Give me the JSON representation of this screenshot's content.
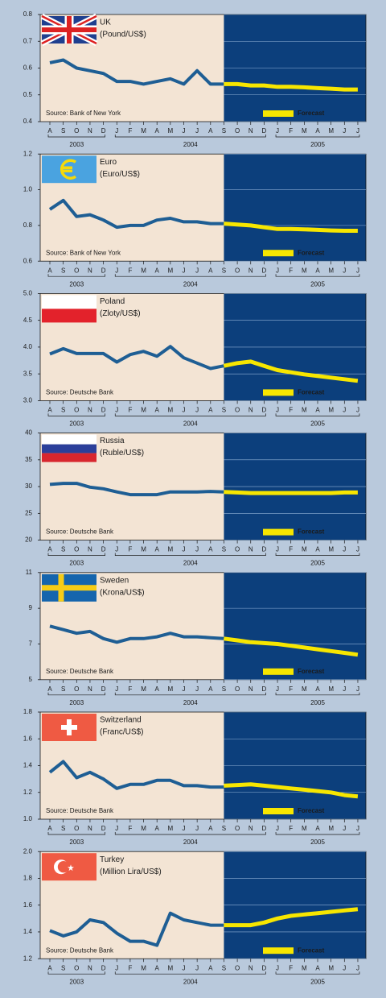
{
  "chart_data": [
    {
      "type": "line",
      "title": "UK",
      "subtitle": "(Pound/US$)",
      "source": "Source: Bank of New York",
      "categories": [
        "A",
        "S",
        "O",
        "N",
        "D",
        "J",
        "F",
        "M",
        "A",
        "M",
        "J",
        "J",
        "A",
        "S",
        "O",
        "N",
        "D",
        "J",
        "F",
        "M",
        "A",
        "M",
        "J",
        "J"
      ],
      "years": [
        "2003",
        "2004",
        "2005"
      ],
      "ylim": [
        0.4,
        0.8
      ],
      "yticks": [
        0.4,
        0.5,
        0.6,
        0.7,
        0.8
      ],
      "grid": true,
      "series": [
        {
          "color": "#1e5e94",
          "values": [
            0.62,
            0.63,
            0.6,
            0.59,
            0.58,
            0.55,
            0.55,
            0.54,
            0.55,
            0.56,
            0.54,
            0.59,
            0.54,
            0.54,
            null,
            null,
            null,
            null,
            null,
            null,
            null,
            null,
            null,
            null
          ]
        },
        {
          "name": "Forecast",
          "color": "#f7e600",
          "values": [
            null,
            null,
            null,
            null,
            null,
            null,
            null,
            null,
            null,
            null,
            null,
            null,
            null,
            0.54,
            0.54,
            0.535,
            0.535,
            0.53,
            0.53,
            0.528,
            0.525,
            0.523,
            0.52,
            0.52
          ]
        }
      ]
    },
    {
      "type": "line",
      "title": "Euro",
      "subtitle": "(Euro/US$)",
      "source": "Source: Bank of New York",
      "categories": [
        "A",
        "S",
        "O",
        "N",
        "D",
        "J",
        "F",
        "M",
        "A",
        "M",
        "J",
        "J",
        "A",
        "S",
        "O",
        "N",
        "D",
        "J",
        "F",
        "M",
        "A",
        "M",
        "J",
        "J"
      ],
      "years": [
        "2003",
        "2004",
        "2005"
      ],
      "ylim": [
        0.6,
        1.2
      ],
      "yticks": [
        0.6,
        0.8,
        {
          "value": 1,
          "label": "1.0"
        },
        1.2
      ],
      "grid": true,
      "series": [
        {
          "color": "#1e5e94",
          "values": [
            0.89,
            0.94,
            0.85,
            0.86,
            0.83,
            0.79,
            0.8,
            0.8,
            0.83,
            0.84,
            0.82,
            0.82,
            0.81,
            0.81,
            null,
            null,
            null,
            null,
            null,
            null,
            null,
            null,
            null,
            null
          ]
        },
        {
          "name": "Forecast",
          "color": "#f7e600",
          "values": [
            null,
            null,
            null,
            null,
            null,
            null,
            null,
            null,
            null,
            null,
            null,
            null,
            null,
            0.81,
            0.805,
            0.8,
            0.79,
            0.78,
            0.78,
            0.778,
            0.775,
            0.772,
            0.77,
            0.77
          ]
        }
      ]
    },
    {
      "type": "line",
      "title": "Poland",
      "subtitle": "(Zloty/US$)",
      "source": "Source: Deutsche Bank",
      "categories": [
        "A",
        "S",
        "O",
        "N",
        "D",
        "J",
        "F",
        "M",
        "A",
        "M",
        "J",
        "J",
        "A",
        "S",
        "O",
        "N",
        "D",
        "J",
        "F",
        "M",
        "A",
        "M",
        "J",
        "J"
      ],
      "years": [
        "2003",
        "2004",
        "2005"
      ],
      "ylim": [
        3,
        5
      ],
      "yticks": [
        {
          "value": 3,
          "label": "3.0"
        },
        3.5,
        {
          "value": 4,
          "label": "4.0"
        },
        4.5,
        {
          "value": 5,
          "label": "5.0"
        }
      ],
      "grid": true,
      "series": [
        {
          "color": "#1e5e94",
          "values": [
            3.87,
            3.97,
            3.88,
            3.88,
            3.88,
            3.72,
            3.86,
            3.92,
            3.83,
            4.01,
            3.8,
            3.7,
            3.6,
            3.65,
            null,
            null,
            null,
            null,
            null,
            null,
            null,
            null,
            null,
            null
          ]
        },
        {
          "name": "Forecast",
          "color": "#f7e600",
          "values": [
            null,
            null,
            null,
            null,
            null,
            null,
            null,
            null,
            null,
            null,
            null,
            null,
            null,
            3.65,
            3.7,
            3.73,
            3.65,
            3.57,
            3.53,
            3.49,
            3.46,
            3.43,
            3.4,
            3.37
          ]
        }
      ]
    },
    {
      "type": "line",
      "title": "Russia",
      "subtitle": "(Ruble/US$)",
      "source": "Source: Deutsche Bank",
      "categories": [
        "A",
        "S",
        "O",
        "N",
        "D",
        "J",
        "F",
        "M",
        "A",
        "M",
        "J",
        "J",
        "A",
        "S",
        "O",
        "N",
        "D",
        "J",
        "F",
        "M",
        "A",
        "M",
        "J",
        "J"
      ],
      "years": [
        "2003",
        "2004",
        "2005"
      ],
      "ylim": [
        20,
        40
      ],
      "yticks": [
        20,
        25,
        30,
        35,
        40
      ],
      "grid": true,
      "series": [
        {
          "color": "#1e5e94",
          "values": [
            30.4,
            30.6,
            30.6,
            29.9,
            29.6,
            29.0,
            28.5,
            28.5,
            28.5,
            29.0,
            29.0,
            29.0,
            29.1,
            29.0,
            null,
            null,
            null,
            null,
            null,
            null,
            null,
            null,
            null,
            null
          ]
        },
        {
          "name": "Forecast",
          "color": "#f7e600",
          "values": [
            null,
            null,
            null,
            null,
            null,
            null,
            null,
            null,
            null,
            null,
            null,
            null,
            null,
            29.0,
            28.9,
            28.8,
            28.8,
            28.8,
            28.8,
            28.8,
            28.8,
            28.8,
            28.9,
            28.9
          ]
        }
      ]
    },
    {
      "type": "line",
      "title": "Sweden",
      "subtitle": "(Krona/US$)",
      "source": "Source: Deutsche Bank",
      "categories": [
        "A",
        "S",
        "O",
        "N",
        "D",
        "J",
        "F",
        "M",
        "A",
        "M",
        "J",
        "J",
        "A",
        "S",
        "O",
        "N",
        "D",
        "J",
        "F",
        "M",
        "A",
        "M",
        "J",
        "J"
      ],
      "years": [
        "2003",
        "2004",
        "2005"
      ],
      "ylim": [
        5,
        11
      ],
      "yticks": [
        5,
        7,
        9,
        11
      ],
      "grid": true,
      "series": [
        {
          "color": "#1e5e94",
          "values": [
            8.0,
            7.8,
            7.6,
            7.7,
            7.3,
            7.1,
            7.3,
            7.3,
            7.4,
            7.6,
            7.4,
            7.4,
            7.35,
            7.3,
            null,
            null,
            null,
            null,
            null,
            null,
            null,
            null,
            null,
            null
          ]
        },
        {
          "name": "Forecast",
          "color": "#f7e600",
          "values": [
            null,
            null,
            null,
            null,
            null,
            null,
            null,
            null,
            null,
            null,
            null,
            null,
            null,
            7.3,
            7.2,
            7.1,
            7.05,
            7.0,
            6.9,
            6.8,
            6.7,
            6.6,
            6.5,
            6.4
          ]
        }
      ]
    },
    {
      "type": "line",
      "title": "Switzerland",
      "subtitle": "(Franc/US$)",
      "source": "Source: Deutsche Bank",
      "categories": [
        "A",
        "S",
        "O",
        "N",
        "D",
        "J",
        "F",
        "M",
        "A",
        "M",
        "J",
        "J",
        "A",
        "S",
        "O",
        "N",
        "D",
        "J",
        "F",
        "M",
        "A",
        "M",
        "J",
        "J"
      ],
      "years": [
        "2003",
        "2004",
        "2005"
      ],
      "ylim": [
        1,
        1.8
      ],
      "yticks": [
        {
          "value": 1,
          "label": "1.0"
        },
        1.2,
        1.4,
        1.6,
        1.8
      ],
      "grid": true,
      "series": [
        {
          "color": "#1e5e94",
          "values": [
            1.35,
            1.43,
            1.31,
            1.35,
            1.3,
            1.23,
            1.26,
            1.26,
            1.29,
            1.29,
            1.25,
            1.25,
            1.24,
            1.24,
            null,
            null,
            null,
            null,
            null,
            null,
            null,
            null,
            null,
            null
          ]
        },
        {
          "name": "Forecast",
          "color": "#f7e600",
          "values": [
            null,
            null,
            null,
            null,
            null,
            null,
            null,
            null,
            null,
            null,
            null,
            null,
            null,
            1.25,
            1.255,
            1.26,
            1.25,
            1.24,
            1.23,
            1.22,
            1.21,
            1.2,
            1.18,
            1.17
          ]
        }
      ]
    },
    {
      "type": "line",
      "title": "Turkey",
      "subtitle": "(Million Lira/US$)",
      "source": "Source: Deutsche Bank",
      "categories": [
        "A",
        "S",
        "O",
        "N",
        "D",
        "J",
        "F",
        "M",
        "A",
        "M",
        "J",
        "J",
        "A",
        "S",
        "O",
        "N",
        "D",
        "J",
        "F",
        "M",
        "A",
        "M",
        "J",
        "J"
      ],
      "years": [
        "2003",
        "2004",
        "2005"
      ],
      "ylim": [
        1.2,
        2
      ],
      "yticks": [
        1.2,
        1.4,
        1.6,
        1.8,
        {
          "value": 2,
          "label": "2.0"
        }
      ],
      "grid": true,
      "series": [
        {
          "color": "#1e5e94",
          "values": [
            1.41,
            1.37,
            1.4,
            1.49,
            1.47,
            1.39,
            1.33,
            1.33,
            1.3,
            1.54,
            1.49,
            1.47,
            1.45,
            1.45,
            null,
            null,
            null,
            null,
            null,
            null,
            null,
            null,
            null,
            null
          ]
        },
        {
          "name": "Forecast",
          "color": "#f7e600",
          "values": [
            null,
            null,
            null,
            null,
            null,
            null,
            null,
            null,
            null,
            null,
            null,
            null,
            null,
            1.45,
            1.45,
            1.45,
            1.47,
            1.5,
            1.52,
            1.53,
            1.54,
            1.55,
            1.56,
            1.57
          ]
        }
      ]
    }
  ]
}
